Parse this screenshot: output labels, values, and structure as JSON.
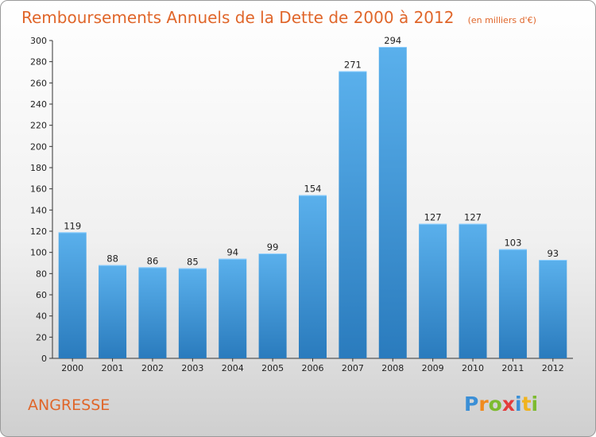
{
  "chart_data": {
    "type": "bar",
    "title": "Remboursements Annuels de la Dette de 2000 à 2012",
    "subtitle": "(en milliers d'€)",
    "categories": [
      "2000",
      "2001",
      "2002",
      "2003",
      "2004",
      "2005",
      "2006",
      "2007",
      "2008",
      "2009",
      "2010",
      "2011",
      "2012"
    ],
    "values": [
      119,
      88,
      86,
      85,
      94,
      99,
      154,
      271,
      294,
      127,
      127,
      103,
      93
    ],
    "xlabel": "",
    "ylabel": "",
    "ylim": [
      0,
      300
    ],
    "yticks": [
      0,
      20,
      40,
      60,
      80,
      100,
      120,
      140,
      160,
      180,
      200,
      220,
      240,
      260,
      280,
      300
    ],
    "grid": false,
    "bar_color_top": "#5ab0ec",
    "bar_color_bottom": "#2a7bbd"
  },
  "commune": "ANGRESSE",
  "logo": {
    "text": "Proxiti",
    "letters": [
      {
        "ch": "P",
        "color": "#3b8fd6"
      },
      {
        "ch": "r",
        "color": "#f08a1e"
      },
      {
        "ch": "o",
        "color": "#7dbb2f"
      },
      {
        "ch": "x",
        "color": "#e43b3b"
      },
      {
        "ch": "i",
        "color": "#3b8fd6"
      },
      {
        "ch": "t",
        "color": "#f0b31e"
      },
      {
        "ch": "i",
        "color": "#7dbb2f"
      }
    ]
  }
}
